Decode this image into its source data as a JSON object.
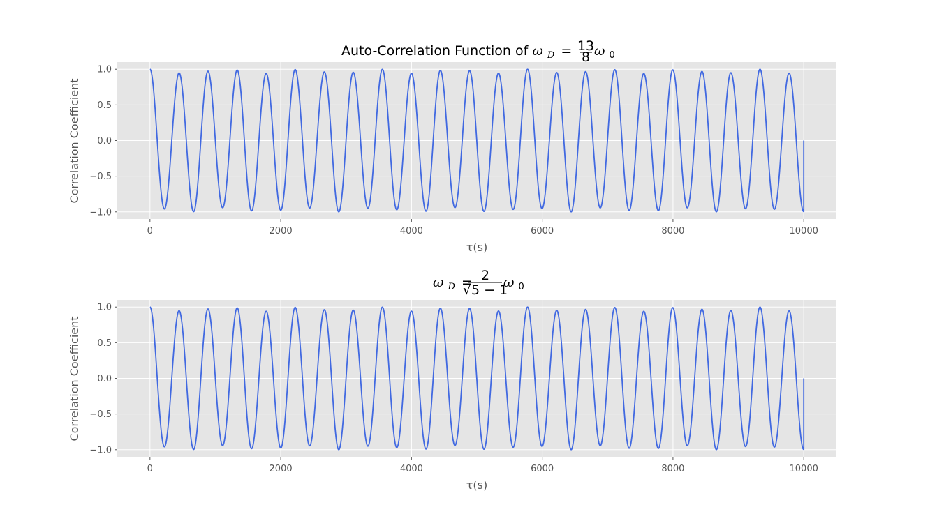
{
  "colors": {
    "line": "#4169e1",
    "panel_bg": "#e5e5e5",
    "grid": "#ffffff",
    "tick_text": "#555555"
  },
  "chart_data": [
    {
      "type": "line",
      "title": "Auto-Correlation Function of ωD = 13/8 ω0",
      "title_text": "Auto-Correlation Function of ",
      "title_math": {
        "omega": "ω",
        "sub_d": "D",
        "eq": "=",
        "num": "13",
        "den": "8",
        "omega0": "ω",
        "sub_0": "0"
      },
      "xlabel": "τ(s)",
      "ylabel": "Correlation Coefficient",
      "xlim": [
        -500,
        10500
      ],
      "ylim": [
        -1.1,
        1.1
      ],
      "xticks": [
        0,
        2000,
        4000,
        6000,
        8000,
        10000
      ],
      "xtick_labels": [
        "0",
        "2000",
        "4000",
        "6000",
        "8000",
        "10000"
      ],
      "yticks": [
        1.0,
        0.5,
        0.0,
        -0.5,
        -1.0
      ],
      "ytick_labels": [
        "1.0",
        "0.5",
        "0.0",
        "−0.5",
        "−1.0"
      ],
      "grid": true,
      "series": [
        {
          "x_range": [
            0,
            10000
          ],
          "period": 444.3,
          "amplitude_envelope": [
            0.94,
            1.0
          ],
          "end_value": 0.0
        }
      ]
    },
    {
      "type": "line",
      "title": "ωD = 2/(√5 − 1) ω0",
      "title_math": {
        "omega": "ω",
        "sub_d": "D",
        "eq": "=",
        "num": "2",
        "den": "√5 − 1",
        "omega0": "ω",
        "sub_0": "0"
      },
      "xlabel": "τ(s)",
      "ylabel": "Correlation Coefficient",
      "xlim": [
        -500,
        10500
      ],
      "ylim": [
        -1.1,
        1.1
      ],
      "xticks": [
        0,
        2000,
        4000,
        6000,
        8000,
        10000
      ],
      "xtick_labels": [
        "0",
        "2000",
        "4000",
        "6000",
        "8000",
        "10000"
      ],
      "yticks": [
        1.0,
        0.5,
        0.0,
        -0.5,
        -1.0
      ],
      "ytick_labels": [
        "1.0",
        "0.5",
        "0.0",
        "−0.5",
        "−1.0"
      ],
      "grid": true,
      "series": [
        {
          "x_range": [
            0,
            10000
          ],
          "period": 444.3,
          "amplitude_envelope": [
            0.94,
            1.0
          ],
          "end_value": 0.0
        }
      ]
    }
  ]
}
